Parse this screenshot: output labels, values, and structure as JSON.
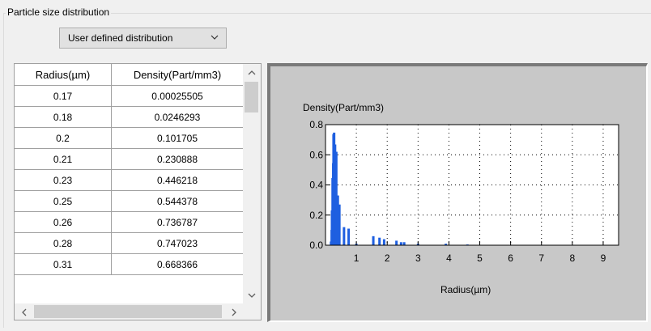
{
  "group": {
    "title": "Particle size distribution"
  },
  "distribution_select": {
    "value": "User defined distribution"
  },
  "table": {
    "columns": [
      "Radius(µm)",
      "Density(Part/mm3)"
    ],
    "rows": [
      [
        "0.17",
        "0.00025505"
      ],
      [
        "0.18",
        "0.0246293"
      ],
      [
        "0.2",
        "0.101705"
      ],
      [
        "0.21",
        "0.230888"
      ],
      [
        "0.23",
        "0.446218"
      ],
      [
        "0.25",
        "0.544378"
      ],
      [
        "0.26",
        "0.736787"
      ],
      [
        "0.28",
        "0.747023"
      ],
      [
        "0.31",
        "0.668366"
      ]
    ]
  },
  "chart_data": {
    "type": "bar",
    "ylabel": "Density(Part/mm3)",
    "xlabel": "Radius(µm)",
    "xlim": [
      0,
      9.5
    ],
    "ylim": [
      0,
      0.8
    ],
    "xticks": [
      1,
      2,
      3,
      4,
      5,
      6,
      7,
      8,
      9
    ],
    "yticks": [
      "0.0",
      "0.2",
      "0.4",
      "0.6",
      "0.8"
    ],
    "grid": true,
    "bar_color": "#1e5fe0",
    "x": [
      0.17,
      0.18,
      0.2,
      0.21,
      0.23,
      0.25,
      0.26,
      0.28,
      0.31,
      0.35,
      0.4,
      0.45,
      0.6,
      0.75,
      1.0,
      1.55,
      1.75,
      1.9,
      2.3,
      2.45,
      2.55,
      3.0,
      3.9,
      4.6
    ],
    "values": [
      0.00025505,
      0.0246293,
      0.101705,
      0.230888,
      0.446218,
      0.544378,
      0.736787,
      0.747023,
      0.668366,
      0.62,
      0.33,
      0.27,
      0.12,
      0.11,
      0.01,
      0.06,
      0.05,
      0.04,
      0.03,
      0.02,
      0.02,
      0.01,
      0.01,
      0.005
    ]
  }
}
